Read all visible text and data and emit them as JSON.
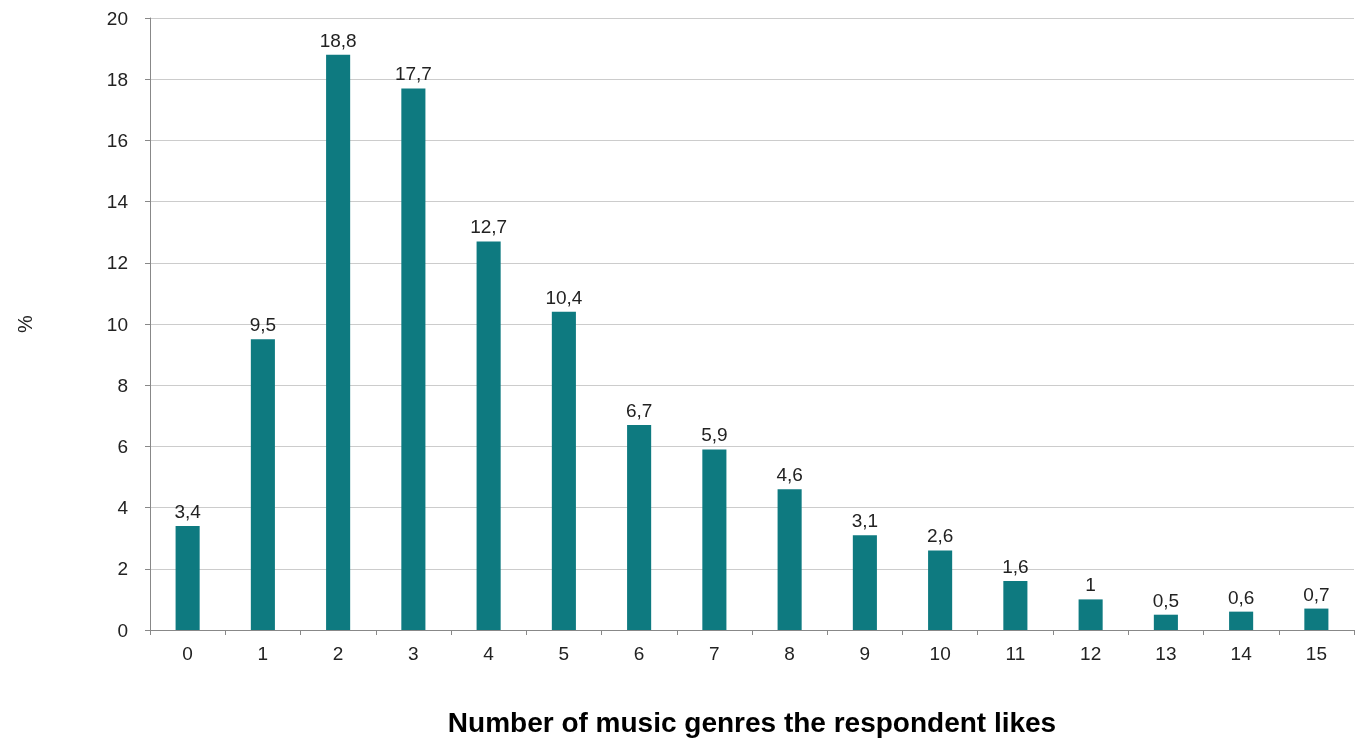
{
  "chart_data": {
    "type": "bar",
    "xlabel": "Number of music genres the respondent likes",
    "ylabel": "%",
    "categories": [
      "0",
      "1",
      "2",
      "3",
      "4",
      "5",
      "6",
      "7",
      "8",
      "9",
      "10",
      "11",
      "12",
      "13",
      "14",
      "15"
    ],
    "values": [
      3.4,
      9.5,
      18.8,
      17.7,
      12.7,
      10.4,
      6.7,
      5.9,
      4.6,
      3.1,
      2.6,
      1.6,
      1,
      0.5,
      0.6,
      0.7
    ],
    "value_labels": [
      "3,4",
      "9,5",
      "18,8",
      "17,7",
      "12,7",
      "10,4",
      "6,7",
      "5,9",
      "4,6",
      "3,1",
      "2,6",
      "1,6",
      "1",
      "0,5",
      "0,6",
      "0,7"
    ],
    "color": "#0e7a80",
    "ylim": [
      0,
      20
    ],
    "yticks": [
      0,
      2,
      4,
      6,
      8,
      10,
      12,
      14,
      16,
      18,
      20
    ],
    "grid": "y"
  }
}
